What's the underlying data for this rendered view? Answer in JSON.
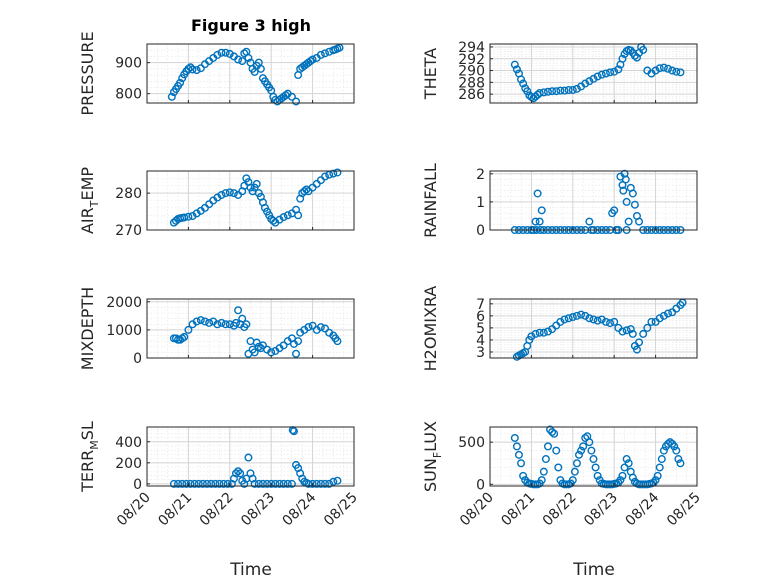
{
  "figure": {
    "title": "Figure 3 high",
    "xlabel": "Time",
    "marker_color": "#0072BD",
    "x_ticks": [
      "08/20",
      "08/21",
      "08/22",
      "08/23",
      "08/24",
      "08/25"
    ]
  },
  "chart_data": [
    {
      "type": "scatter",
      "ylabel": "PRESSURE",
      "ylim": [
        770,
        960
      ],
      "yticks": [
        800,
        900
      ],
      "grid": true,
      "x": [
        20.6,
        20.65,
        20.7,
        20.75,
        20.8,
        20.85,
        20.9,
        20.95,
        21.0,
        21.05,
        21.1,
        21.2,
        21.3,
        21.4,
        21.5,
        21.6,
        21.7,
        21.8,
        21.9,
        22.0,
        22.1,
        22.2,
        22.3,
        22.35,
        22.4,
        22.45,
        22.5,
        22.55,
        22.6,
        22.65,
        22.7,
        22.75,
        22.8,
        22.85,
        22.9,
        22.95,
        23.0,
        23.05,
        23.1,
        23.15,
        23.2,
        23.25,
        23.3,
        23.35,
        23.4,
        23.5,
        23.6,
        23.65,
        23.7,
        23.75,
        23.8,
        23.85,
        23.9,
        23.95,
        24.0,
        24.1,
        24.2,
        24.3,
        24.4,
        24.5,
        24.55,
        24.6,
        24.65
      ],
      "y": [
        790,
        805,
        815,
        825,
        835,
        850,
        862,
        872,
        880,
        885,
        878,
        876,
        882,
        895,
        905,
        915,
        925,
        932,
        932,
        928,
        920,
        910,
        905,
        930,
        935,
        915,
        900,
        880,
        870,
        890,
        900,
        880,
        850,
        840,
        830,
        820,
        810,
        790,
        780,
        775,
        780,
        785,
        790,
        795,
        800,
        790,
        775,
        860,
        880,
        885,
        890,
        895,
        900,
        905,
        910,
        915,
        925,
        930,
        935,
        940,
        942,
        945,
        948
      ]
    },
    {
      "type": "scatter",
      "ylabel": "THETA",
      "ylim": [
        284.5,
        294.5
      ],
      "yticks": [
        286,
        288,
        290,
        292,
        294
      ],
      "grid": true,
      "x": [
        20.6,
        20.65,
        20.7,
        20.75,
        20.8,
        20.85,
        20.9,
        20.95,
        21.0,
        21.05,
        21.1,
        21.15,
        21.2,
        21.3,
        21.4,
        21.5,
        21.6,
        21.7,
        21.8,
        21.9,
        22.0,
        22.1,
        22.2,
        22.3,
        22.4,
        22.5,
        22.6,
        22.7,
        22.8,
        22.9,
        23.0,
        23.1,
        23.15,
        23.2,
        23.25,
        23.3,
        23.35,
        23.4,
        23.45,
        23.5,
        23.55,
        23.6,
        23.65,
        23.7,
        23.8,
        23.9,
        24.0,
        24.1,
        24.2,
        24.3,
        24.4,
        24.5,
        24.6
      ],
      "y": [
        291.0,
        290.2,
        289.5,
        288.5,
        287.8,
        287.0,
        286.5,
        285.8,
        285.5,
        285.3,
        285.6,
        285.9,
        286.2,
        286.3,
        286.4,
        286.5,
        286.5,
        286.6,
        286.6,
        286.7,
        286.7,
        286.9,
        287.3,
        287.8,
        288.2,
        288.6,
        289.0,
        289.3,
        289.5,
        289.7,
        289.8,
        290.2,
        291.0,
        292.0,
        292.8,
        293.3,
        293.5,
        293.4,
        293.0,
        292.5,
        292.2,
        293.0,
        294.0,
        293.5,
        290.0,
        289.5,
        290.0,
        290.4,
        290.5,
        290.3,
        290.0,
        289.8,
        289.7
      ]
    },
    {
      "type": "scatter",
      "ylabel": "AIR_TEMP",
      "ylim": [
        270,
        286
      ],
      "yticks": [
        270,
        280
      ],
      "grid": true,
      "x": [
        20.65,
        20.7,
        20.75,
        20.8,
        20.85,
        20.9,
        21.0,
        21.1,
        21.2,
        21.3,
        21.4,
        21.5,
        21.6,
        21.7,
        21.8,
        21.9,
        22.0,
        22.1,
        22.2,
        22.3,
        22.35,
        22.4,
        22.45,
        22.5,
        22.55,
        22.6,
        22.65,
        22.7,
        22.75,
        22.8,
        22.85,
        22.9,
        22.95,
        23.0,
        23.05,
        23.1,
        23.2,
        23.3,
        23.4,
        23.5,
        23.6,
        23.65,
        23.7,
        23.75,
        23.8,
        23.85,
        23.9,
        24.0,
        24.1,
        24.2,
        24.3,
        24.4,
        24.5,
        24.6
      ],
      "y": [
        272.0,
        272.5,
        273.0,
        273.2,
        273.3,
        273.4,
        273.6,
        273.8,
        274.5,
        275.2,
        276.0,
        277.0,
        278.0,
        278.8,
        279.5,
        280.0,
        280.2,
        280.0,
        279.5,
        280.5,
        282.0,
        284.0,
        283.0,
        281.5,
        280.5,
        281.5,
        282.5,
        280.0,
        279.0,
        277.5,
        276.0,
        275.0,
        274.0,
        273.0,
        272.5,
        272.0,
        272.8,
        273.5,
        274.0,
        274.5,
        275.5,
        274.0,
        278.5,
        280.0,
        280.5,
        281.0,
        280.5,
        281.5,
        282.5,
        283.5,
        284.5,
        285.0,
        285.3,
        285.6
      ]
    },
    {
      "type": "scatter",
      "ylabel": "RAINFALL",
      "ylim": [
        0,
        2.1
      ],
      "yticks": [
        0,
        1,
        2
      ],
      "grid": true,
      "x": [
        20.6,
        20.7,
        20.8,
        20.9,
        21.0,
        21.05,
        21.1,
        21.15,
        21.2,
        21.25,
        21.3,
        21.4,
        21.5,
        21.6,
        21.7,
        21.8,
        21.9,
        22.0,
        22.1,
        22.2,
        22.3,
        22.4,
        22.5,
        22.6,
        22.7,
        22.8,
        22.9,
        22.95,
        23.0,
        23.05,
        23.1,
        23.15,
        23.2,
        23.22,
        23.25,
        23.28,
        23.3,
        23.35,
        23.4,
        23.45,
        23.5,
        23.55,
        23.6,
        23.7,
        23.8,
        23.9,
        24.0,
        24.1,
        24.2,
        24.3,
        24.4,
        24.5,
        24.6,
        23.3,
        22.45,
        21.12,
        21.22
      ],
      "y": [
        0,
        0,
        0,
        0,
        0,
        0,
        0.3,
        1.3,
        0.3,
        0.7,
        0,
        0,
        0,
        0,
        0,
        0,
        0,
        0,
        0,
        0,
        0,
        0.3,
        0,
        0,
        0,
        0,
        0,
        0.6,
        0.7,
        0,
        0,
        1.9,
        1.6,
        1.4,
        2.0,
        1.8,
        1.0,
        0.3,
        1.5,
        1.3,
        0.9,
        0.5,
        0.3,
        0,
        0,
        0,
        0,
        0,
        0,
        0,
        0,
        0,
        0,
        0,
        0,
        0,
        0
      ]
    },
    {
      "type": "scatter",
      "ylabel": "MIXDEPTH",
      "ylim": [
        0,
        2100
      ],
      "yticks": [
        0,
        1000,
        2000
      ],
      "grid": true,
      "x": [
        20.65,
        20.7,
        20.75,
        20.8,
        20.85,
        20.9,
        21.0,
        21.1,
        21.2,
        21.3,
        21.4,
        21.5,
        21.6,
        21.7,
        21.8,
        21.9,
        22.0,
        22.1,
        22.15,
        22.2,
        22.25,
        22.3,
        22.35,
        22.4,
        22.45,
        22.5,
        22.55,
        22.6,
        22.65,
        22.7,
        22.75,
        22.8,
        22.9,
        23.0,
        23.1,
        23.2,
        23.3,
        23.4,
        23.5,
        23.55,
        23.6,
        23.65,
        23.7,
        23.8,
        23.9,
        24.0,
        24.1,
        24.2,
        24.3,
        24.4,
        24.5,
        24.55,
        24.6
      ],
      "y": [
        700,
        700,
        650,
        650,
        700,
        750,
        1000,
        1200,
        1300,
        1350,
        1300,
        1250,
        1300,
        1200,
        1250,
        1200,
        1200,
        1150,
        1250,
        1700,
        1200,
        1400,
        1100,
        1200,
        150,
        600,
        300,
        200,
        550,
        400,
        350,
        450,
        300,
        200,
        250,
        350,
        450,
        600,
        700,
        500,
        150,
        600,
        900,
        1000,
        1100,
        1150,
        1000,
        1100,
        1050,
        900,
        800,
        700,
        600
      ]
    },
    {
      "type": "scatter",
      "ylabel": "H2OMIXRA",
      "ylim": [
        2.5,
        7.4
      ],
      "yticks": [
        3,
        4,
        5,
        6,
        7
      ],
      "grid": true,
      "x": [
        20.65,
        20.7,
        20.75,
        20.8,
        20.85,
        20.9,
        20.95,
        21.0,
        21.1,
        21.2,
        21.3,
        21.4,
        21.5,
        21.6,
        21.7,
        21.8,
        21.9,
        22.0,
        22.1,
        22.2,
        22.3,
        22.4,
        22.5,
        22.6,
        22.7,
        22.8,
        22.9,
        23.0,
        23.1,
        23.2,
        23.3,
        23.4,
        23.45,
        23.5,
        23.55,
        23.6,
        23.7,
        23.8,
        23.9,
        24.0,
        24.1,
        24.2,
        24.3,
        24.4,
        24.5,
        24.6,
        24.65
      ],
      "y": [
        2.6,
        2.7,
        2.8,
        2.9,
        3.0,
        3.5,
        4.0,
        4.3,
        4.5,
        4.6,
        4.6,
        4.7,
        4.9,
        5.2,
        5.5,
        5.7,
        5.8,
        5.9,
        6.0,
        6.1,
        6.0,
        5.8,
        5.7,
        5.6,
        5.7,
        5.5,
        5.4,
        5.5,
        5.0,
        4.7,
        4.8,
        4.9,
        4.5,
        3.5,
        3.2,
        3.8,
        4.5,
        5.0,
        5.5,
        5.5,
        5.8,
        6.0,
        6.2,
        6.3,
        6.6,
        6.9,
        7.1
      ]
    },
    {
      "type": "scatter",
      "ylabel": "TERR_MSL",
      "ylim": [
        -20,
        540
      ],
      "yticks": [
        0,
        200,
        400
      ],
      "grid": true,
      "x": [
        20.65,
        20.75,
        20.85,
        20.95,
        21.05,
        21.15,
        21.25,
        21.35,
        21.45,
        21.55,
        21.65,
        21.75,
        21.85,
        21.95,
        22.05,
        22.1,
        22.15,
        22.2,
        22.25,
        22.3,
        22.35,
        22.4,
        22.45,
        22.5,
        22.55,
        22.6,
        22.7,
        22.8,
        22.9,
        23.0,
        23.1,
        23.2,
        23.3,
        23.4,
        23.5,
        23.52,
        23.55,
        23.6,
        23.65,
        23.7,
        23.75,
        23.8,
        23.85,
        23.9,
        24.0,
        24.1,
        24.2,
        24.3,
        24.4,
        24.5,
        24.6
      ],
      "y": [
        0,
        0,
        0,
        0,
        0,
        0,
        0,
        0,
        0,
        0,
        0,
        0,
        0,
        0,
        0,
        50,
        100,
        120,
        100,
        30,
        0,
        50,
        250,
        100,
        50,
        0,
        0,
        0,
        0,
        0,
        0,
        0,
        0,
        0,
        0,
        510,
        500,
        180,
        150,
        100,
        50,
        20,
        10,
        0,
        0,
        0,
        0,
        0,
        0,
        20,
        30
      ]
    },
    {
      "type": "scatter",
      "ylabel": "SUN_FLUX",
      "ylim": [
        -20,
        680
      ],
      "yticks": [
        0,
        500
      ],
      "grid": true,
      "x": [
        20.6,
        20.65,
        20.7,
        20.75,
        20.8,
        20.85,
        20.9,
        20.95,
        21.0,
        21.05,
        21.1,
        21.15,
        21.2,
        21.25,
        21.3,
        21.35,
        21.4,
        21.45,
        21.5,
        21.55,
        21.6,
        21.65,
        21.7,
        21.75,
        21.8,
        21.85,
        21.9,
        21.95,
        22.0,
        22.05,
        22.1,
        22.15,
        22.2,
        22.25,
        22.3,
        22.35,
        22.4,
        22.45,
        22.5,
        22.55,
        22.6,
        22.65,
        22.7,
        22.75,
        22.8,
        22.85,
        22.9,
        22.95,
        23.0,
        23.05,
        23.1,
        23.15,
        23.2,
        23.25,
        23.3,
        23.35,
        23.4,
        23.45,
        23.5,
        23.55,
        23.6,
        23.65,
        23.7,
        23.75,
        23.8,
        23.85,
        23.9,
        23.95,
        24.0,
        24.05,
        24.1,
        24.15,
        24.2,
        24.25,
        24.3,
        24.35,
        24.4,
        24.45,
        24.5,
        24.55,
        24.6
      ],
      "y": [
        550,
        450,
        350,
        250,
        100,
        50,
        20,
        10,
        5,
        0,
        0,
        0,
        10,
        50,
        150,
        300,
        450,
        650,
        620,
        600,
        400,
        200,
        50,
        10,
        0,
        0,
        0,
        10,
        50,
        150,
        250,
        350,
        400,
        450,
        550,
        570,
        500,
        400,
        300,
        200,
        100,
        50,
        10,
        5,
        0,
        0,
        0,
        0,
        5,
        10,
        20,
        50,
        100,
        200,
        300,
        250,
        150,
        80,
        30,
        10,
        0,
        0,
        0,
        0,
        0,
        5,
        10,
        20,
        50,
        100,
        200,
        300,
        400,
        450,
        480,
        500,
        480,
        450,
        400,
        300,
        250
      ]
    }
  ]
}
